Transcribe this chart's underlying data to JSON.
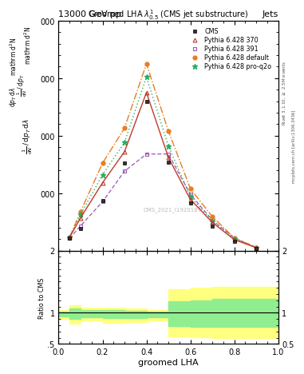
{
  "title_top": "13000 GeV pp",
  "title_right": "Jets",
  "plot_title": "Groomed LHA $\\lambda^{1}_{0.5}$ (CMS jet substructure)",
  "watermark": "CMS_2021_I1920187",
  "xlabel": "groomed LHA",
  "ylabel_main_top": "mathrm d$^2$N",
  "ylabel_main_mid": "$\\frac{1}{\\mathrm{d}N\\,/\\,\\mathrm{d}p_T\\,\\mathrm{d}\\lambda}$",
  "ylabel_ratio": "Ratio to CMS",
  "cms_x": [
    0.05,
    0.1,
    0.2,
    0.3,
    0.4,
    0.5,
    0.6,
    0.7,
    0.8,
    0.9
  ],
  "cms_y": [
    220,
    380,
    870,
    1520,
    2600,
    1530,
    830,
    430,
    160,
    35
  ],
  "pythia370_x": [
    0.05,
    0.1,
    0.2,
    0.3,
    0.4,
    0.5,
    0.6,
    0.7,
    0.8,
    0.9
  ],
  "pythia370_y": [
    230,
    570,
    1180,
    1720,
    2750,
    1620,
    890,
    490,
    190,
    50
  ],
  "pythia391_x": [
    0.05,
    0.1,
    0.2,
    0.3,
    0.4,
    0.5,
    0.6,
    0.7,
    0.8,
    0.9
  ],
  "pythia391_y": [
    210,
    430,
    850,
    1380,
    1680,
    1680,
    980,
    530,
    220,
    55
  ],
  "pythia_def_x": [
    0.05,
    0.1,
    0.2,
    0.3,
    0.4,
    0.5,
    0.6,
    0.7,
    0.8,
    0.9
  ],
  "pythia_def_y": [
    230,
    680,
    1520,
    2130,
    3250,
    2080,
    1080,
    590,
    220,
    55
  ],
  "pythia_pro_x": [
    0.05,
    0.1,
    0.2,
    0.3,
    0.4,
    0.5,
    0.6,
    0.7,
    0.8,
    0.9
  ],
  "pythia_pro_y": [
    230,
    630,
    1320,
    1880,
    3020,
    1820,
    940,
    510,
    200,
    50
  ],
  "color_cms": "#000000",
  "color_370": "#c0392b",
  "color_391": "#9b59b6",
  "color_def": "#e67e22",
  "color_pro": "#27ae60",
  "ylim_main": [
    0,
    4000
  ],
  "ylim_ratio": [
    0.5,
    2.0
  ],
  "yticks_main": [
    0,
    1000,
    2000,
    3000,
    4000
  ],
  "background_color": "#ffffff",
  "ratio_yellow_x": [
    0.0,
    0.05,
    0.05,
    0.1,
    0.1,
    0.2,
    0.2,
    0.3,
    0.3,
    0.4,
    0.4,
    0.5,
    0.5,
    0.6,
    0.6,
    0.7,
    0.7,
    1.0
  ],
  "ratio_yellow_lo": [
    0.9,
    0.9,
    0.82,
    0.82,
    0.88,
    0.88,
    0.84,
    0.84,
    0.85,
    0.85,
    0.88,
    0.88,
    0.62,
    0.62,
    0.61,
    0.61,
    0.6,
    0.6
  ],
  "ratio_yellow_hi": [
    1.05,
    1.05,
    1.12,
    1.12,
    1.08,
    1.08,
    1.08,
    1.08,
    1.07,
    1.07,
    1.05,
    1.05,
    1.38,
    1.38,
    1.4,
    1.4,
    1.42,
    1.42
  ],
  "ratio_green_x": [
    0.0,
    0.05,
    0.05,
    0.1,
    0.1,
    0.2,
    0.2,
    0.3,
    0.3,
    0.4,
    0.4,
    0.5,
    0.5,
    0.6,
    0.6,
    0.7,
    0.7,
    1.0
  ],
  "ratio_green_lo": [
    0.94,
    0.94,
    0.9,
    0.9,
    0.93,
    0.93,
    0.91,
    0.91,
    0.92,
    0.92,
    0.93,
    0.93,
    0.79,
    0.79,
    0.78,
    0.78,
    0.77,
    0.77
  ],
  "ratio_green_hi": [
    1.02,
    1.02,
    1.07,
    1.07,
    1.04,
    1.04,
    1.04,
    1.04,
    1.03,
    1.03,
    1.02,
    1.02,
    1.18,
    1.18,
    1.2,
    1.2,
    1.22,
    1.22
  ]
}
